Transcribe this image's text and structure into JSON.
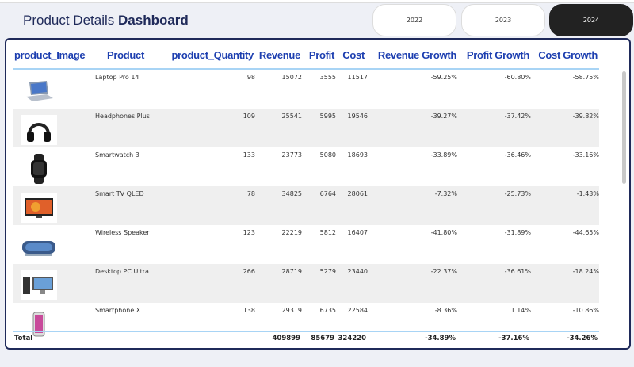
{
  "header": {
    "title_light": "Product Details",
    "title_bold": "Dashboard"
  },
  "years": [
    {
      "label": "2022",
      "active": false
    },
    {
      "label": "2023",
      "active": false
    },
    {
      "label": "2024",
      "active": true
    }
  ],
  "table": {
    "columns": [
      "product_Image",
      "Product",
      "product_Quantity",
      "Revenue",
      "Profit",
      "Cost",
      "Revenue Growth",
      "Profit Growth",
      "Cost Growth"
    ],
    "rows": [
      {
        "image": "laptop",
        "product": "Laptop Pro 14",
        "quantity": "98",
        "revenue": "15072",
        "profit": "3555",
        "cost": "11517",
        "rev_growth": "-59.25%",
        "profit_growth": "-60.80%",
        "cost_growth": "-58.75%"
      },
      {
        "image": "headphones",
        "product": "Headphones Plus",
        "quantity": "109",
        "revenue": "25541",
        "profit": "5995",
        "cost": "19546",
        "rev_growth": "-39.27%",
        "profit_growth": "-37.42%",
        "cost_growth": "-39.82%"
      },
      {
        "image": "smartwatch",
        "product": "Smartwatch 3",
        "quantity": "133",
        "revenue": "23773",
        "profit": "5080",
        "cost": "18693",
        "rev_growth": "-33.89%",
        "profit_growth": "-36.46%",
        "cost_growth": "-33.16%"
      },
      {
        "image": "tv",
        "product": "Smart TV QLED",
        "quantity": "78",
        "revenue": "34825",
        "profit": "6764",
        "cost": "28061",
        "rev_growth": "-7.32%",
        "profit_growth": "-25.73%",
        "cost_growth": "-1.43%"
      },
      {
        "image": "speaker",
        "product": "Wireless Speaker",
        "quantity": "123",
        "revenue": "22219",
        "profit": "5812",
        "cost": "16407",
        "rev_growth": "-41.80%",
        "profit_growth": "-31.89%",
        "cost_growth": "-44.65%"
      },
      {
        "image": "desktop",
        "product": "Desktop PC Ultra",
        "quantity": "266",
        "revenue": "28719",
        "profit": "5279",
        "cost": "23440",
        "rev_growth": "-22.37%",
        "profit_growth": "-36.61%",
        "cost_growth": "-18.24%"
      },
      {
        "image": "smartphone",
        "product": "Smartphone X",
        "quantity": "138",
        "revenue": "29319",
        "profit": "6735",
        "cost": "22584",
        "rev_growth": "-8.36%",
        "profit_growth": "1.14%",
        "cost_growth": "-10.86%"
      }
    ],
    "total": {
      "label": "Total",
      "revenue": "409899",
      "profit": "85679",
      "cost": "324220",
      "rev_growth": "-34.89%",
      "profit_growth": "-37.16%",
      "cost_growth": "-34.26%"
    }
  },
  "colors": {
    "header_text": "#1d3fb0",
    "title": "#1f2a5a",
    "border": "#1f2a5a",
    "active_year": "#222222",
    "divider": "#a8d4f5"
  }
}
